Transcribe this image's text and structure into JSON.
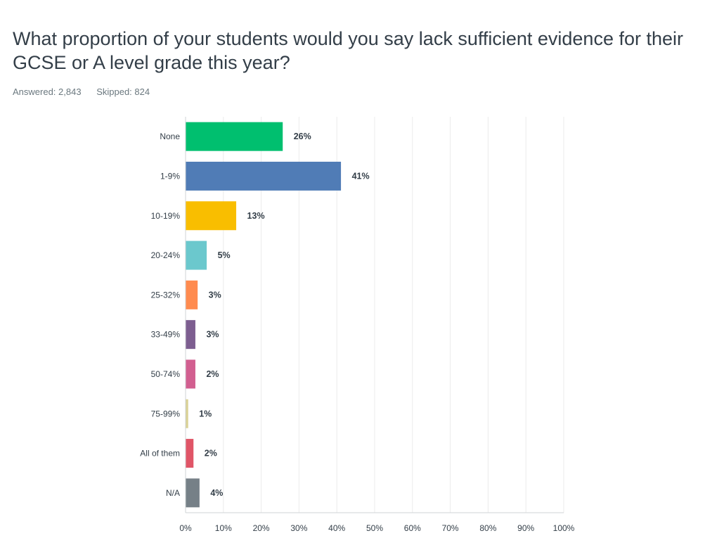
{
  "question": {
    "title": "What proportion of your students would you say lack sufficient evidence for their GCSE or A level grade this year?",
    "answered": "Answered: 2,843",
    "skipped": "Skipped: 824"
  },
  "chart_data": {
    "type": "bar",
    "orientation": "horizontal",
    "categories": [
      "None",
      "1-9%",
      "10-19%",
      "20-24%",
      "25-32%",
      "33-49%",
      "50-74%",
      "75-99%",
      "All of them",
      "N/A"
    ],
    "values": [
      26,
      41,
      13,
      5,
      3,
      3,
      2,
      1,
      2,
      4
    ],
    "value_labels": [
      "26%",
      "41%",
      "13%",
      "5%",
      "3%",
      "3%",
      "2%",
      "1%",
      "2%",
      "4%"
    ],
    "bar_widths_percent": [
      25.6,
      41.0,
      13.3,
      5.5,
      3.1,
      2.5,
      2.5,
      0.6,
      2.0,
      3.6
    ],
    "colors": [
      "#00bf6f",
      "#507cb6",
      "#f9be00",
      "#6bc8cd",
      "#ff8b4f",
      "#7d5e90",
      "#d25f90",
      "#dad295",
      "#e05567",
      "#768087"
    ],
    "x_ticks": [
      "0%",
      "10%",
      "20%",
      "30%",
      "40%",
      "50%",
      "60%",
      "70%",
      "80%",
      "90%",
      "100%"
    ],
    "xlim": [
      0,
      100
    ],
    "grid": true,
    "title": "",
    "xlabel": "",
    "ylabel": ""
  }
}
